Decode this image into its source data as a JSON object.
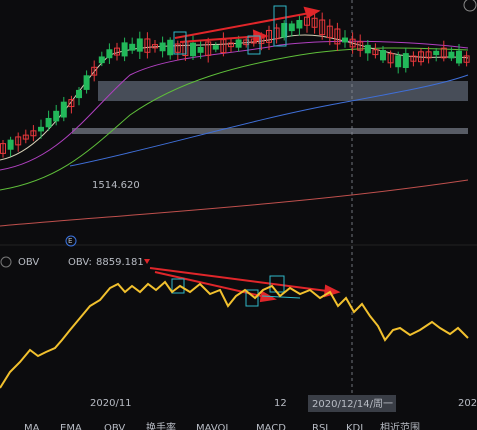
{
  "price_panel": {
    "low_label": "1514.620"
  },
  "indicator_panel": {
    "name": "OBV",
    "value_key": "OBV:",
    "value": "8859.181"
  },
  "x_axis": {
    "labels": [
      "2020/11",
      "12",
      "202"
    ],
    "cursor_date": "2020/12/14/周一"
  },
  "tabs": [
    "MA",
    "EMA",
    "OBV",
    "换手率",
    "MAVOL",
    "MACD",
    "RSI",
    "KDJ",
    "相近范围"
  ]
}
